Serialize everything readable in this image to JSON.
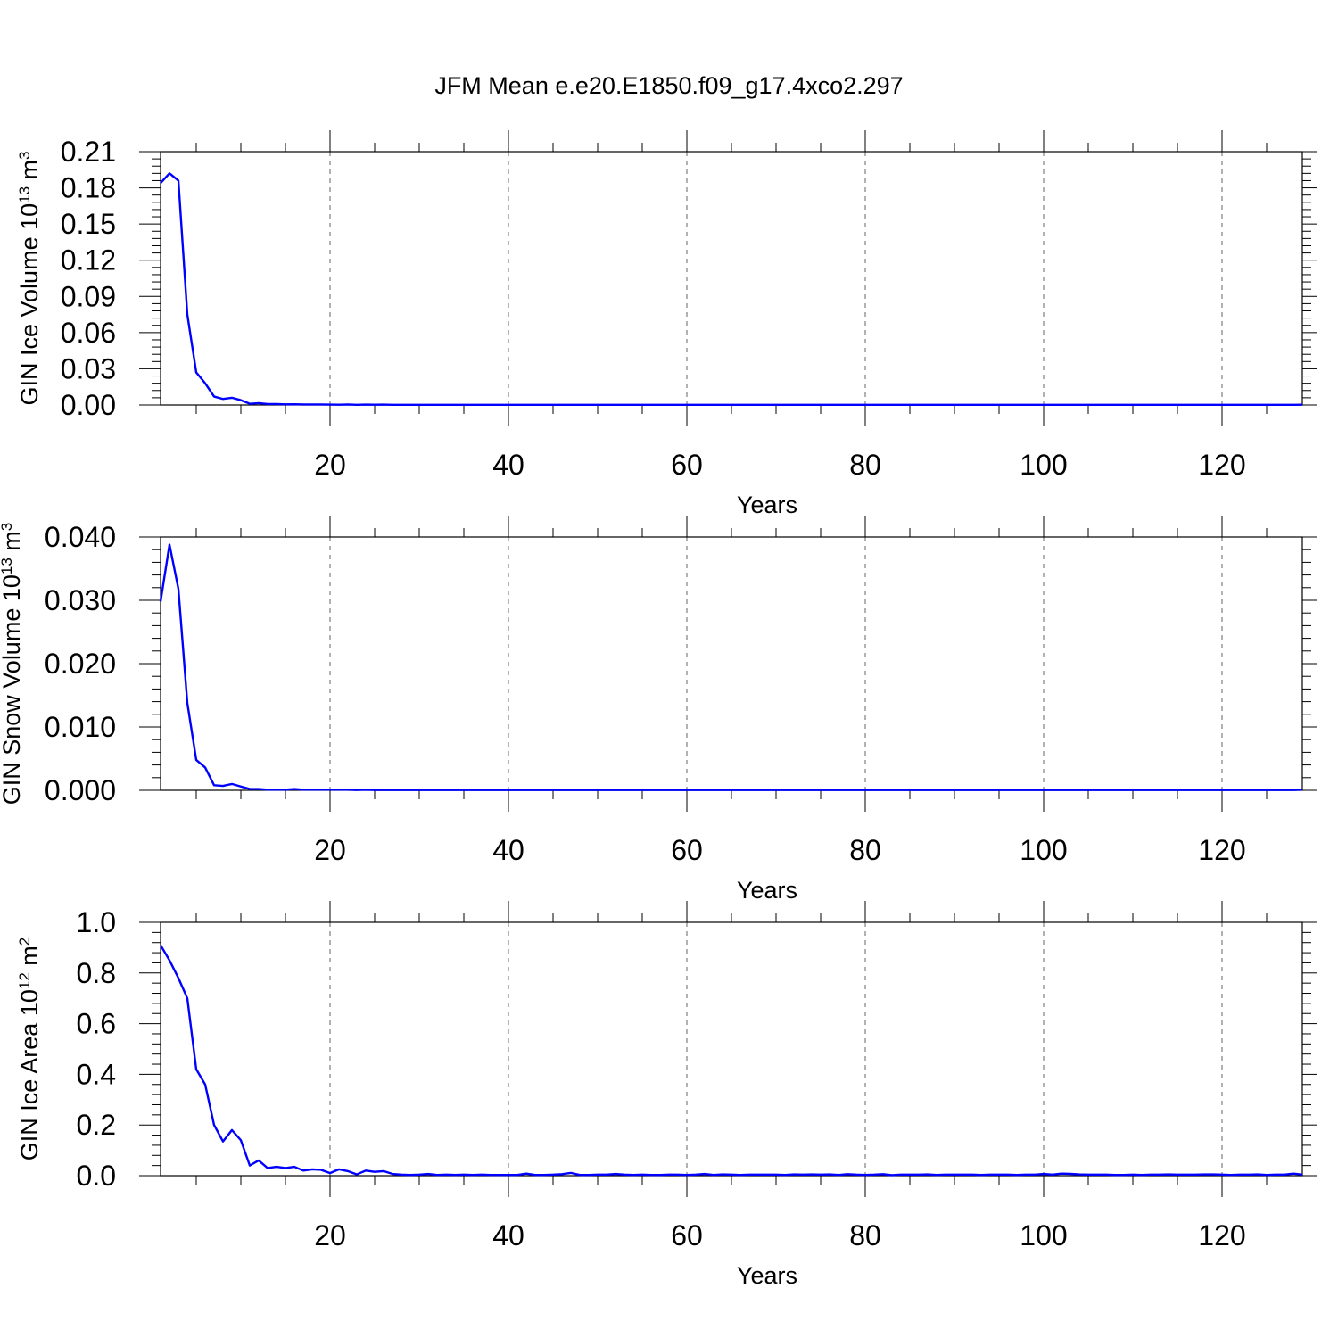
{
  "title": "JFM Mean e.e20.E1850.f09_g17.4xco2.297",
  "colors": {
    "line": "#0000ff",
    "grid": "#666666",
    "axis": "#000000"
  },
  "chart_data": [
    {
      "type": "line",
      "xlabel": "Years",
      "ylabel": {
        "text": "GIN Ice Volume 10",
        "exp": "13",
        "unit": " m",
        "unit_exp": "3"
      },
      "xlim": [
        1,
        129
      ],
      "ylim": [
        0,
        0.21
      ],
      "xticks": [
        20,
        40,
        60,
        80,
        100,
        120
      ],
      "xtick_labels": [
        "20",
        "40",
        "60",
        "80",
        "100",
        "120"
      ],
      "yticks": [
        0,
        0.03,
        0.06,
        0.09,
        0.12,
        0.15,
        0.18,
        0.21
      ],
      "ytick_labels": [
        "0.00",
        "0.03",
        "0.06",
        "0.09",
        "0.12",
        "0.15",
        "0.18",
        "0.21"
      ],
      "grid": "vertical dashed",
      "series": [
        {
          "x_start": 1,
          "values": [
            0.184,
            0.192,
            0.186,
            0.075,
            0.027,
            0.018,
            0.007,
            0.005,
            0.006,
            0.004,
            0.001,
            0.0015,
            0.0008,
            0.0008,
            0.0005,
            0.0006,
            0.0004,
            0.0004,
            0.0004,
            0.0003,
            0.0002,
            0.0004,
            0.0001,
            0.0003,
            0.0002,
            0.0003,
            0.0001,
            0.0001,
            0.0001,
            0.0001,
            0.0001,
            0.0001,
            0.0001,
            0.0001,
            0.0001,
            0.0001,
            0.0001,
            0.0001,
            0.0001,
            0.0001,
            0.0001,
            0.0001,
            0.0001,
            0.0001,
            0.0001,
            0.0001,
            0.0001,
            0.0001,
            0.0001,
            0.0001,
            0.0001,
            0.0001,
            0.0001,
            0.0001,
            0.0001,
            0.0001,
            0.0001,
            0.0001,
            0.0001,
            0.0001,
            0.0001,
            0.0001,
            0.0001,
            0.0001,
            0.0001,
            0.0001,
            0.0001,
            0.0001,
            0.0001,
            0.0001,
            0.0001,
            0.0001,
            0.0001,
            0.0001,
            0.0001,
            0.0001,
            0.0001,
            0.0001,
            0.0001,
            0.0001,
            0.0001,
            0.0001,
            0.0001,
            0.0001,
            0.0001,
            0.0001,
            0.0001,
            0.0001,
            0.0001,
            0.0001,
            0.0001,
            0.0001,
            0.0001,
            0.0001,
            0.0001,
            0.0001,
            0.0001,
            0.0001,
            0.0001,
            0.0001,
            0.0001,
            0.0001,
            0.0001,
            0.0001,
            0.0001,
            0.0001,
            0.0001,
            0.0001,
            0.0001,
            0.0001,
            0.0001,
            0.0001,
            0.0001,
            0.0001,
            0.0001,
            0.0001,
            0.0001,
            0.0001,
            0.0001,
            0.0001,
            0.0001,
            0.0001,
            0.0001,
            0.0001,
            0.0001,
            0.0001,
            0.0001,
            0.0001,
            0.0002
          ]
        }
      ]
    },
    {
      "type": "line",
      "xlabel": "Years",
      "ylabel": {
        "text": "GIN Snow Volume 10",
        "exp": "13",
        "unit": " m",
        "unit_exp": "3"
      },
      "xlim": [
        1,
        129
      ],
      "ylim": [
        0,
        0.04
      ],
      "xticks": [
        20,
        40,
        60,
        80,
        100,
        120
      ],
      "xtick_labels": [
        "20",
        "40",
        "60",
        "80",
        "100",
        "120"
      ],
      "yticks": [
        0,
        0.01,
        0.02,
        0.03,
        0.04
      ],
      "ytick_labels": [
        "0.000",
        "0.010",
        "0.020",
        "0.030",
        "0.040"
      ],
      "grid": "vertical dashed",
      "series": [
        {
          "x_start": 1,
          "values": [
            0.0298,
            0.0388,
            0.0318,
            0.0138,
            0.0048,
            0.0036,
            0.0008,
            0.0007,
            0.001,
            0.0006,
            0.0002,
            0.0002,
            0.0001,
            0.0001,
            0.0001,
            0.0002,
            0.0001,
            0.0001,
            0.0001,
            0.0001,
            0.0001,
            0.0001,
            5e-05,
            0.0001,
            5e-05,
            5e-05,
            5e-05,
            5e-05,
            5e-05,
            5e-05,
            5e-05,
            5e-05,
            5e-05,
            5e-05,
            5e-05,
            5e-05,
            5e-05,
            5e-05,
            5e-05,
            5e-05,
            5e-05,
            5e-05,
            5e-05,
            5e-05,
            5e-05,
            5e-05,
            5e-05,
            5e-05,
            5e-05,
            5e-05,
            5e-05,
            5e-05,
            5e-05,
            5e-05,
            5e-05,
            5e-05,
            5e-05,
            5e-05,
            5e-05,
            5e-05,
            5e-05,
            5e-05,
            5e-05,
            5e-05,
            5e-05,
            5e-05,
            5e-05,
            5e-05,
            5e-05,
            5e-05,
            5e-05,
            5e-05,
            5e-05,
            5e-05,
            5e-05,
            5e-05,
            5e-05,
            5e-05,
            5e-05,
            5e-05,
            5e-05,
            5e-05,
            5e-05,
            5e-05,
            5e-05,
            5e-05,
            5e-05,
            5e-05,
            5e-05,
            5e-05,
            5e-05,
            5e-05,
            5e-05,
            5e-05,
            5e-05,
            5e-05,
            5e-05,
            5e-05,
            5e-05,
            5e-05,
            5e-05,
            5e-05,
            5e-05,
            5e-05,
            5e-05,
            5e-05,
            5e-05,
            5e-05,
            5e-05,
            5e-05,
            5e-05,
            5e-05,
            5e-05,
            5e-05,
            5e-05,
            5e-05,
            5e-05,
            5e-05,
            5e-05,
            5e-05,
            5e-05,
            5e-05,
            5e-05,
            5e-05,
            5e-05,
            5e-05,
            5e-05,
            5e-05,
            0.0001
          ]
        }
      ]
    },
    {
      "type": "line",
      "xlabel": "Years",
      "ylabel": {
        "text": "GIN Ice Area 10",
        "exp": "12",
        "unit": " m",
        "unit_exp": "2"
      },
      "xlim": [
        1,
        129
      ],
      "ylim": [
        0,
        1.0
      ],
      "xticks": [
        20,
        40,
        60,
        80,
        100,
        120
      ],
      "xtick_labels": [
        "20",
        "40",
        "60",
        "80",
        "100",
        "120"
      ],
      "yticks": [
        0,
        0.2,
        0.4,
        0.6,
        0.8,
        1.0
      ],
      "ytick_labels": [
        "0.0",
        "0.2",
        "0.4",
        "0.6",
        "0.8",
        "1.0"
      ],
      "grid": "vertical dashed",
      "series": [
        {
          "x_start": 1,
          "values": [
            0.91,
            0.85,
            0.78,
            0.7,
            0.42,
            0.36,
            0.2,
            0.135,
            0.18,
            0.14,
            0.04,
            0.06,
            0.03,
            0.035,
            0.03,
            0.035,
            0.02,
            0.025,
            0.023,
            0.01,
            0.025,
            0.018,
            0.005,
            0.02,
            0.015,
            0.018,
            0.007,
            0.004,
            0.003,
            0.004,
            0.007,
            0.003,
            0.004,
            0.003,
            0.004,
            0.003,
            0.004,
            0.003,
            0.003,
            0.003,
            0.003,
            0.008,
            0.003,
            0.003,
            0.004,
            0.006,
            0.011,
            0.003,
            0.003,
            0.004,
            0.004,
            0.007,
            0.004,
            0.003,
            0.004,
            0.003,
            0.003,
            0.004,
            0.004,
            0.003,
            0.004,
            0.007,
            0.003,
            0.005,
            0.004,
            0.003,
            0.004,
            0.004,
            0.004,
            0.004,
            0.003,
            0.005,
            0.004,
            0.005,
            0.004,
            0.005,
            0.003,
            0.006,
            0.004,
            0.003,
            0.004,
            0.006,
            0.002,
            0.004,
            0.004,
            0.004,
            0.005,
            0.003,
            0.004,
            0.004,
            0.004,
            0.004,
            0.003,
            0.004,
            0.004,
            0.004,
            0.003,
            0.004,
            0.004,
            0.007,
            0.004,
            0.008,
            0.007,
            0.005,
            0.004,
            0.004,
            0.004,
            0.003,
            0.003,
            0.004,
            0.003,
            0.004,
            0.004,
            0.005,
            0.004,
            0.004,
            0.004,
            0.005,
            0.005,
            0.004,
            0.003,
            0.004,
            0.004,
            0.005,
            0.003,
            0.004,
            0.004,
            0.008,
            0.004
          ]
        }
      ]
    }
  ]
}
